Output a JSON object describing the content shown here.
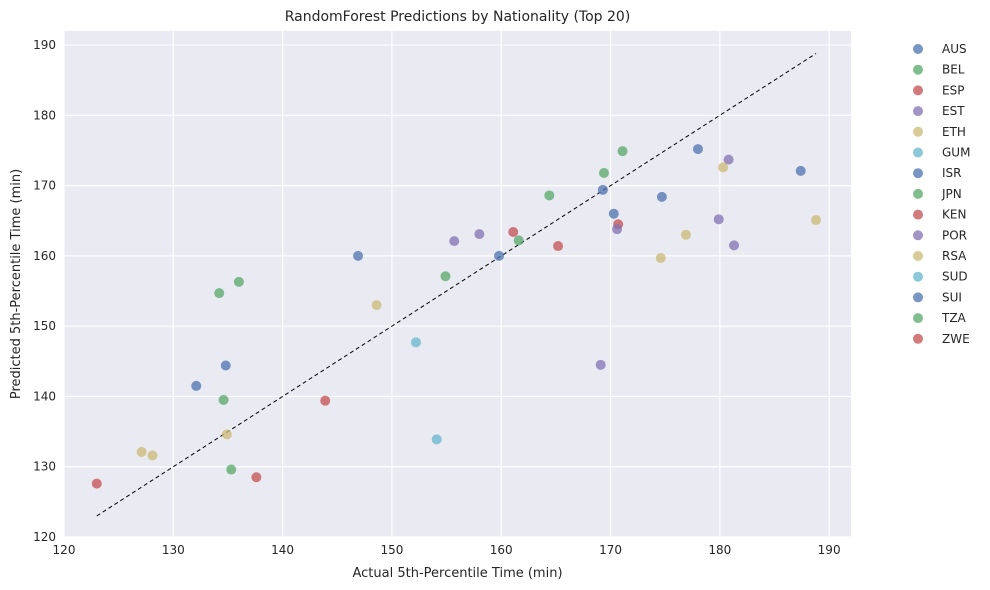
{
  "chart_data": {
    "type": "scatter",
    "title": "RandomForest Predictions by Nationality (Top 20)",
    "xlabel": "Actual 5th-Percentile Time (min)",
    "ylabel": "Predicted 5th-Percentile Time (min)",
    "xlim": [
      120,
      192
    ],
    "ylim": [
      120,
      192
    ],
    "xticks": [
      "120",
      "130",
      "140",
      "150",
      "160",
      "170",
      "180",
      "190"
    ],
    "yticks": [
      "120",
      "130",
      "140",
      "150",
      "160",
      "170",
      "180",
      "190"
    ],
    "grid": true,
    "legend_position": "outside-right",
    "background": "#eaeaf2",
    "reference_line": {
      "x": [
        123,
        188.8
      ],
      "y": [
        123,
        188.8
      ],
      "style": "dashed",
      "color": "#000000"
    },
    "series": [
      {
        "name": "AUS",
        "color": "#4c72b0",
        "points": [
          [
            132.1,
            141.5
          ],
          [
            134.8,
            144.4
          ],
          [
            146.9,
            160.0
          ],
          [
            159.8,
            160.0
          ],
          [
            169.3,
            169.4
          ],
          [
            170.3,
            166.0
          ],
          [
            174.7,
            168.4
          ],
          [
            178.0,
            175.2
          ],
          [
            187.4,
            172.1
          ]
        ]
      },
      {
        "name": "BEL",
        "color": "#55a868",
        "points": [
          [
            134.2,
            154.7
          ],
          [
            136.0,
            156.3
          ],
          [
            134.6,
            139.5
          ],
          [
            135.3,
            129.6
          ],
          [
            154.9,
            157.1
          ],
          [
            161.6,
            162.2
          ],
          [
            164.4,
            168.6
          ],
          [
            169.4,
            171.8
          ],
          [
            171.1,
            174.9
          ]
        ]
      },
      {
        "name": "ESP",
        "color": "#c44e52",
        "points": [
          [
            123.0,
            127.6
          ],
          [
            137.6,
            128.5
          ],
          [
            143.9,
            139.4
          ],
          [
            161.1,
            163.4
          ],
          [
            165.2,
            161.4
          ],
          [
            170.7,
            164.5
          ]
        ]
      },
      {
        "name": "EST",
        "color": "#8172b3",
        "points": [
          [
            155.7,
            162.1
          ],
          [
            158.0,
            163.1
          ],
          [
            169.1,
            144.5
          ],
          [
            170.6,
            163.8
          ],
          [
            179.9,
            165.2
          ],
          [
            180.8,
            173.7
          ],
          [
            181.3,
            161.5
          ]
        ]
      },
      {
        "name": "ETH",
        "color": "#ccb974",
        "points": [
          [
            127.1,
            132.1
          ],
          [
            128.1,
            131.6
          ],
          [
            134.9,
            134.6
          ],
          [
            148.6,
            153.0
          ],
          [
            174.6,
            159.7
          ],
          [
            176.9,
            163.0
          ],
          [
            180.3,
            172.6
          ],
          [
            188.8,
            165.1
          ]
        ]
      },
      {
        "name": "GUM",
        "color": "#64b5cd",
        "points": [
          [
            152.2,
            147.7
          ],
          [
            154.1,
            133.9
          ]
        ]
      },
      {
        "name": "ISR",
        "color": "#4c72b0",
        "points": []
      },
      {
        "name": "JPN",
        "color": "#55a868",
        "points": []
      },
      {
        "name": "KEN",
        "color": "#c44e52",
        "points": []
      },
      {
        "name": "POR",
        "color": "#8172b3",
        "points": []
      },
      {
        "name": "RSA",
        "color": "#ccb974",
        "points": []
      },
      {
        "name": "SUD",
        "color": "#64b5cd",
        "points": []
      },
      {
        "name": "SUI",
        "color": "#4c72b0",
        "points": []
      },
      {
        "name": "TZA",
        "color": "#55a868",
        "points": []
      },
      {
        "name": "ZWE",
        "color": "#c44e52",
        "points": []
      }
    ]
  }
}
